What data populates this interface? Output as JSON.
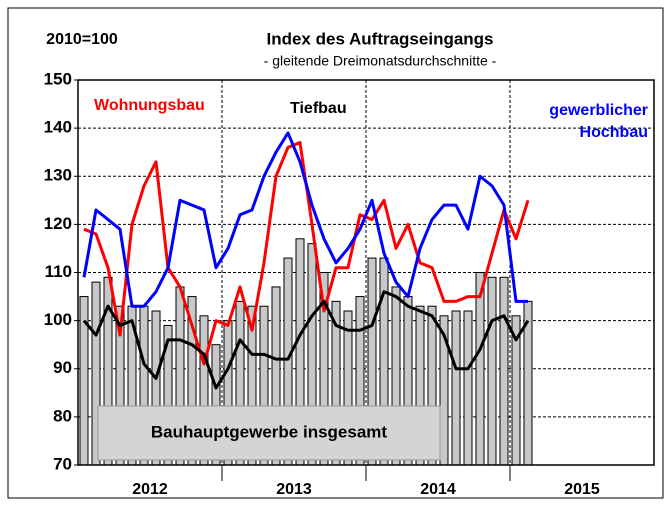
{
  "chart_data": {
    "type": "bar_line",
    "title": "Index des Auftragseingangs",
    "subtitle": "- gleitende Dreimonatsdurchschnitte -",
    "base_note": "2010=100",
    "categories": [
      null,
      null,
      null,
      null,
      null,
      null,
      null,
      null,
      null,
      null,
      null,
      null,
      null,
      null,
      null,
      null,
      null,
      null,
      null,
      null,
      null,
      null,
      null,
      null,
      null,
      null,
      null,
      null,
      null,
      null,
      null,
      null,
      null,
      null,
      null,
      null,
      null,
      null,
      null,
      null,
      null,
      null,
      null,
      null,
      null,
      null,
      null,
      null
    ],
    "year_labels": [
      "2012",
      "2013",
      "2014",
      "2015"
    ],
    "series": [
      {
        "name": "Bauhauptgewerbe insgesamt",
        "kind": "bar",
        "color": "#c8c8c8",
        "values": [
          105,
          108,
          109,
          103,
          103,
          103,
          102,
          99,
          107,
          105,
          101,
          95,
          100,
          104,
          103,
          103,
          107,
          113,
          117,
          116,
          110,
          104,
          102,
          105,
          113,
          113,
          107,
          105,
          103,
          103,
          101,
          102,
          102,
          110,
          109,
          109,
          101,
          104,
          null,
          null,
          null,
          null,
          null,
          null,
          null,
          null,
          null,
          null
        ]
      },
      {
        "name": "Wohnungsbau",
        "kind": "line",
        "color": "#ff0000",
        "values": [
          119,
          118,
          111,
          97,
          120,
          128,
          133,
          111,
          107,
          99,
          91,
          100,
          99,
          107,
          98,
          112,
          130,
          136,
          137,
          120,
          102,
          111,
          111,
          122,
          121,
          125,
          115,
          120,
          112,
          111,
          104,
          104,
          105,
          105,
          114,
          123,
          117,
          125,
          null,
          null,
          null,
          null,
          null,
          null,
          null,
          null,
          null,
          null
        ]
      },
      {
        "name": "Tiefbau",
        "kind": "line",
        "color": "#000000",
        "values": [
          100,
          97,
          103,
          99,
          100,
          91,
          88,
          96,
          96,
          95,
          93,
          86,
          90,
          96,
          93,
          93,
          92,
          92,
          97,
          101,
          104,
          99,
          98,
          98,
          99,
          106,
          105,
          103,
          102,
          101,
          97,
          90,
          90,
          94,
          100,
          101,
          96,
          100,
          null,
          null,
          null,
          null,
          null,
          null,
          null,
          null,
          null,
          null
        ]
      },
      {
        "name": "gewerblicher Hochbau",
        "kind": "line",
        "color": "#0000ff",
        "values": [
          109,
          123,
          121,
          119,
          103,
          103,
          106,
          111,
          125,
          124,
          123,
          111,
          115,
          122,
          123,
          130,
          135,
          139,
          133,
          124,
          117,
          112,
          115,
          119,
          125,
          114,
          108,
          105,
          115,
          121,
          124,
          124,
          119,
          130,
          128,
          124,
          104,
          104,
          null,
          null,
          null,
          null,
          null,
          null,
          null,
          null,
          null,
          null
        ]
      }
    ],
    "ylim": [
      70,
      150
    ],
    "yticks": [
      70,
      80,
      90,
      100,
      110,
      120,
      130,
      140,
      150
    ],
    "grid": true
  }
}
